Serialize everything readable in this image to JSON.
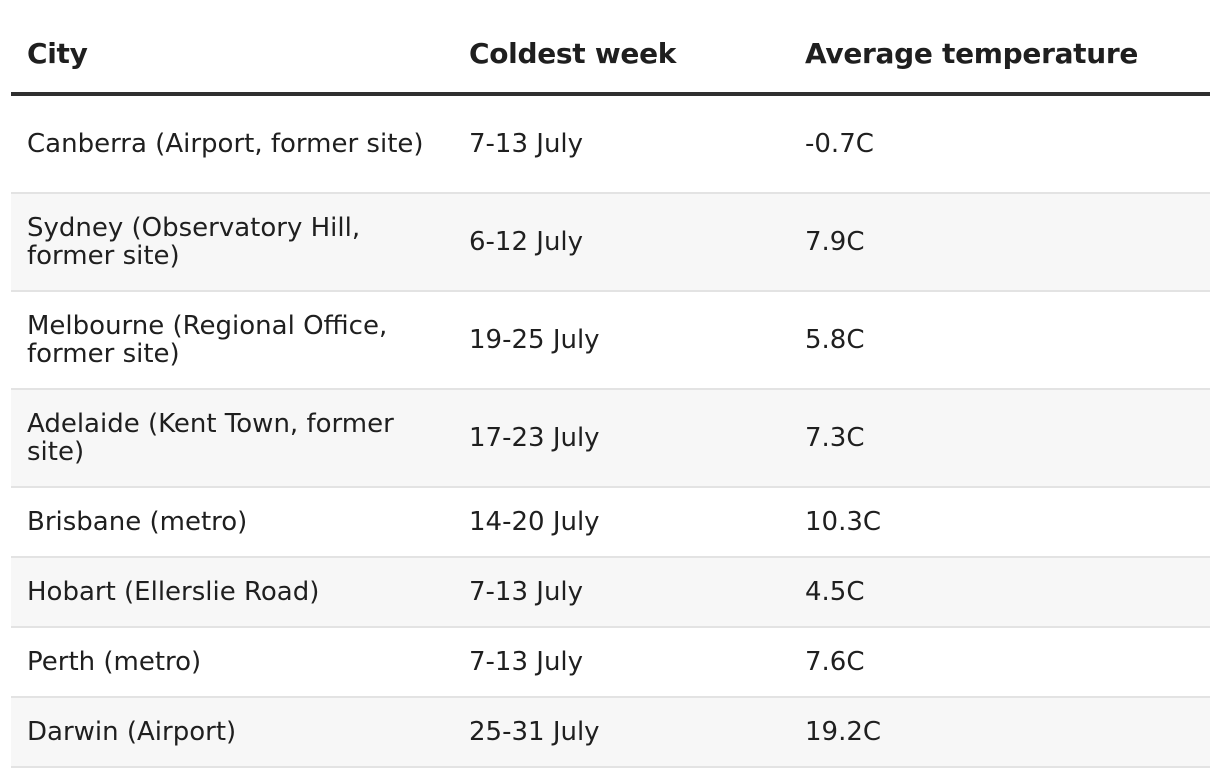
{
  "table": {
    "headers": [
      "City",
      "Coldest week",
      "Average temperature"
    ],
    "rows": [
      {
        "city": "Canberra (Airport, former site)",
        "week": "7-13 July",
        "temp": "-0.7C"
      },
      {
        "city": "Sydney (Observatory Hill, former site)",
        "week": "6-12 July",
        "temp": "7.9C"
      },
      {
        "city": "Melbourne (Regional Office, former site)",
        "week": "19-25 July",
        "temp": "5.8C"
      },
      {
        "city": "Adelaide (Kent Town, former site)",
        "week": "17-23 July",
        "temp": "7.3C"
      },
      {
        "city": "Brisbane (metro)",
        "week": "14-20 July",
        "temp": "10.3C"
      },
      {
        "city": "Hobart (Ellerslie Road)",
        "week": "7-13 July",
        "temp": "4.5C"
      },
      {
        "city": "Perth (metro)",
        "week": "7-13 July",
        "temp": "7.6C"
      },
      {
        "city": "Darwin (Airport)",
        "week": "25-31 July",
        "temp": "19.2C"
      }
    ]
  }
}
